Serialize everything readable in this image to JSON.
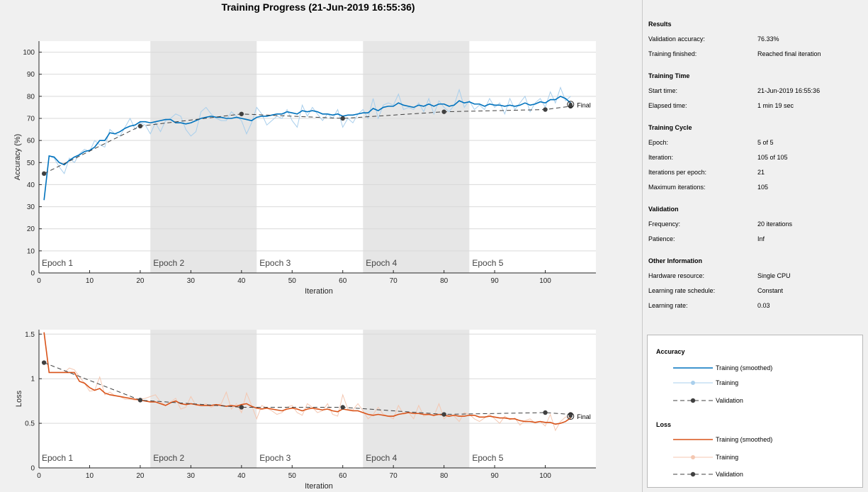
{
  "title": "Training Progress (21-Jun-2019 16:55:36)",
  "chart_data": [
    {
      "type": "line",
      "ylabel": "Accuracy (%)",
      "xlabel": "Iteration",
      "xlim": [
        0,
        110
      ],
      "ylim": [
        0,
        105
      ],
      "xticks": [
        0,
        10,
        20,
        30,
        40,
        50,
        60,
        70,
        80,
        90,
        100
      ],
      "yticks": [
        0,
        10,
        20,
        30,
        40,
        50,
        60,
        70,
        80,
        90,
        100
      ],
      "epochs": [
        {
          "label": "Epoch 1",
          "start": 0,
          "end": 22,
          "shaded": false
        },
        {
          "label": "Epoch 2",
          "start": 22,
          "end": 43,
          "shaded": true
        },
        {
          "label": "Epoch 3",
          "start": 43,
          "end": 64,
          "shaded": false
        },
        {
          "label": "Epoch 4",
          "start": 64,
          "end": 85,
          "shaded": true
        },
        {
          "label": "Epoch 5",
          "start": 85,
          "end": 110,
          "shaded": false
        }
      ],
      "final_label": "Final",
      "series": [
        {
          "name": "Training",
          "color": "#a9cfec",
          "x_start": 1,
          "values": [
            33,
            53,
            52,
            48,
            45,
            52,
            50,
            54,
            56,
            55,
            60,
            58,
            57,
            65,
            63,
            62,
            66,
            70,
            65,
            68,
            67,
            63,
            68,
            64,
            69,
            70,
            72,
            71,
            65,
            62,
            64,
            73,
            75,
            72,
            70,
            69,
            69,
            73,
            71,
            69,
            63,
            68,
            75,
            72,
            67,
            69,
            71,
            70,
            74,
            69,
            66,
            76,
            71,
            75,
            72,
            69,
            72,
            70,
            74,
            66,
            70,
            68,
            72,
            74,
            70,
            79,
            70,
            76,
            77,
            76,
            81,
            74,
            75,
            74,
            77,
            73,
            79,
            72,
            78,
            75,
            73,
            76,
            83,
            75,
            78,
            74,
            76,
            74,
            79,
            75,
            77,
            72,
            79,
            74,
            77,
            80,
            73,
            77,
            79,
            75,
            82,
            77,
            84,
            78,
            80
          ]
        },
        {
          "name": "Training (smoothed)",
          "color": "#0072bd",
          "x_start": 1,
          "values": [
            33,
            53,
            52.5,
            50,
            49,
            51,
            52.5,
            53.5,
            55,
            55.5,
            57,
            60,
            60,
            63.5,
            63,
            64,
            65.5,
            66.5,
            67,
            68.5,
            68.5,
            68,
            68.5,
            69,
            69.5,
            69.5,
            68,
            68,
            67.5,
            68,
            69,
            70,
            70.5,
            71,
            70.5,
            70.5,
            70,
            70,
            70.5,
            70,
            69.5,
            69,
            70.5,
            71,
            71,
            71.5,
            72,
            72,
            73,
            72.5,
            72,
            73.5,
            73,
            73.5,
            73,
            72,
            72,
            71.5,
            72,
            71,
            71.5,
            71.5,
            72,
            72.5,
            72.5,
            74.5,
            73.5,
            75,
            75.5,
            75.5,
            77,
            76,
            75.5,
            75,
            76,
            75.5,
            76.5,
            75.5,
            76.5,
            76.5,
            75.5,
            76,
            78,
            77,
            77.5,
            76.5,
            76.5,
            75.5,
            76.5,
            76,
            76,
            75.5,
            76,
            75.5,
            76,
            77,
            76,
            76.5,
            77.5,
            77,
            78.5,
            78.5,
            80,
            79,
            77
          ]
        },
        {
          "name": "Validation",
          "color": "#404040",
          "x": [
            1,
            20,
            40,
            60,
            80,
            100,
            105
          ],
          "values": [
            45,
            66.5,
            72,
            70,
            73,
            74,
            75.5
          ]
        }
      ],
      "final_marker": {
        "x": 105,
        "y": 76.33
      }
    },
    {
      "type": "line",
      "ylabel": "Loss",
      "xlabel": "Iteration",
      "xlim": [
        0,
        110
      ],
      "ylim": [
        0,
        1.55
      ],
      "xticks": [
        0,
        10,
        20,
        30,
        40,
        50,
        60,
        70,
        80,
        90,
        100
      ],
      "yticks": [
        0,
        0.5,
        1,
        1.5
      ],
      "ytick_labels": [
        "0",
        "0.5",
        "1",
        "1.5"
      ],
      "epochs": [
        {
          "label": "Epoch 1",
          "start": 0,
          "end": 22,
          "shaded": false
        },
        {
          "label": "Epoch 2",
          "start": 22,
          "end": 43,
          "shaded": true
        },
        {
          "label": "Epoch 3",
          "start": 43,
          "end": 64,
          "shaded": false
        },
        {
          "label": "Epoch 4",
          "start": 64,
          "end": 85,
          "shaded": true
        },
        {
          "label": "Epoch 5",
          "start": 85,
          "end": 110,
          "shaded": false
        }
      ],
      "final_label": "Final",
      "series": [
        {
          "name": "Training",
          "color": "#f4c7b1",
          "x_start": 1,
          "values": [
            1.52,
            1.07,
            1.07,
            1.07,
            1.07,
            1.12,
            1.1,
            1.02,
            0.95,
            0.86,
            0.87,
            1.02,
            0.82,
            0.85,
            0.81,
            0.8,
            0.77,
            0.77,
            0.76,
            0.77,
            0.78,
            0.8,
            0.82,
            0.74,
            0.7,
            0.74,
            0.78,
            0.66,
            0.68,
            0.8,
            0.7,
            0.7,
            0.72,
            0.68,
            0.7,
            0.72,
            0.85,
            0.66,
            0.72,
            0.62,
            0.84,
            0.7,
            0.55,
            0.7,
            0.67,
            0.64,
            0.6,
            0.62,
            0.68,
            0.7,
            0.62,
            0.59,
            0.72,
            0.68,
            0.62,
            0.64,
            0.72,
            0.6,
            0.58,
            0.82,
            0.66,
            0.65,
            0.72,
            0.64,
            0.55,
            0.6,
            0.68,
            0.6,
            0.58,
            0.55,
            0.7,
            0.6,
            0.62,
            0.55,
            0.7,
            0.58,
            0.6,
            0.58,
            0.72,
            0.55,
            0.6,
            0.58,
            0.52,
            0.62,
            0.6,
            0.55,
            0.52,
            0.56,
            0.6,
            0.55,
            0.5,
            0.58,
            0.54,
            0.56,
            0.48,
            0.53,
            0.55,
            0.5,
            0.52,
            0.47,
            0.6,
            0.42,
            0.52,
            0.57,
            0.57
          ]
        },
        {
          "name": "Training (smoothed)",
          "color": "#d95319",
          "x_start": 1,
          "values": [
            1.52,
            1.07,
            1.07,
            1.07,
            1.07,
            1.07,
            1.07,
            0.97,
            0.95,
            0.9,
            0.87,
            0.89,
            0.84,
            0.82,
            0.81,
            0.8,
            0.79,
            0.78,
            0.77,
            0.76,
            0.75,
            0.74,
            0.74,
            0.72,
            0.7,
            0.73,
            0.75,
            0.72,
            0.71,
            0.72,
            0.71,
            0.7,
            0.7,
            0.7,
            0.71,
            0.7,
            0.69,
            0.7,
            0.69,
            0.71,
            0.72,
            0.69,
            0.67,
            0.66,
            0.67,
            0.66,
            0.65,
            0.64,
            0.66,
            0.67,
            0.66,
            0.64,
            0.66,
            0.67,
            0.66,
            0.65,
            0.66,
            0.64,
            0.63,
            0.66,
            0.65,
            0.64,
            0.64,
            0.62,
            0.6,
            0.59,
            0.6,
            0.59,
            0.58,
            0.58,
            0.6,
            0.61,
            0.62,
            0.61,
            0.61,
            0.6,
            0.6,
            0.59,
            0.6,
            0.59,
            0.58,
            0.59,
            0.58,
            0.58,
            0.59,
            0.59,
            0.57,
            0.57,
            0.58,
            0.57,
            0.56,
            0.56,
            0.55,
            0.55,
            0.53,
            0.52,
            0.52,
            0.51,
            0.52,
            0.51,
            0.51,
            0.49,
            0.5,
            0.52,
            0.56
          ]
        },
        {
          "name": "Validation",
          "color": "#404040",
          "x": [
            1,
            20,
            40,
            60,
            80,
            100,
            105
          ],
          "values": [
            1.18,
            0.76,
            0.68,
            0.68,
            0.6,
            0.62,
            0.6
          ]
        }
      ],
      "final_marker": {
        "x": 105,
        "y": 0.58
      }
    }
  ],
  "sidebar": {
    "sections": [
      {
        "title": "Results",
        "rows": [
          {
            "label": "Validation accuracy:",
            "value": "76.33%"
          },
          {
            "label": "Training finished:",
            "value": "Reached final iteration"
          }
        ]
      },
      {
        "title": "Training Time",
        "rows": [
          {
            "label": "Start time:",
            "value": "21-Jun-2019 16:55:36"
          },
          {
            "label": "Elapsed time:",
            "value": "1 min 19 sec"
          }
        ]
      },
      {
        "title": "Training Cycle",
        "rows": [
          {
            "label": "Epoch:",
            "value": "5 of 5"
          },
          {
            "label": "Iteration:",
            "value": "105 of 105"
          },
          {
            "label": "Iterations per epoch:",
            "value": "21"
          },
          {
            "label": "Maximum iterations:",
            "value": "105"
          }
        ]
      },
      {
        "title": "Validation",
        "rows": [
          {
            "label": "Frequency:",
            "value": "20 iterations"
          },
          {
            "label": "Patience:",
            "value": "Inf"
          }
        ]
      },
      {
        "title": "Other Information",
        "rows": [
          {
            "label": "Hardware resource:",
            "value": "Single CPU"
          },
          {
            "label": "Learning rate schedule:",
            "value": "Constant"
          },
          {
            "label": "Learning rate:",
            "value": "0.03"
          }
        ]
      }
    ]
  },
  "legend": {
    "accuracy": {
      "title": "Accuracy",
      "smoothed": "Training (smoothed)",
      "training": "Training",
      "validation": "Validation",
      "colors": {
        "smoothed": "#0072bd",
        "training": "#a9cfec",
        "validation": "#404040"
      }
    },
    "loss": {
      "title": "Loss",
      "smoothed": "Training (smoothed)",
      "training": "Training",
      "validation": "Validation",
      "colors": {
        "smoothed": "#d95319",
        "training": "#f4c7b1",
        "validation": "#404040"
      }
    }
  }
}
